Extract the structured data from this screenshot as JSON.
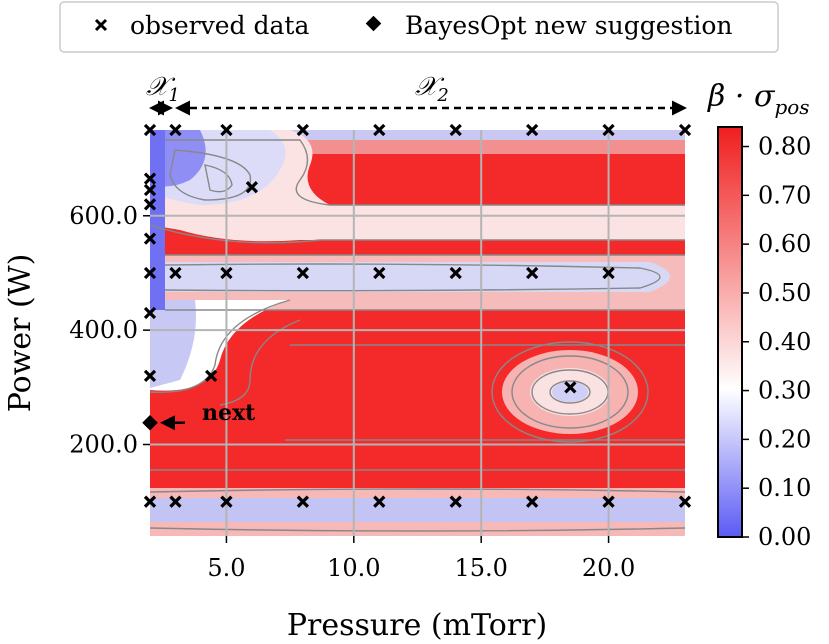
{
  "chart_data": {
    "type": "heatmap",
    "title": "",
    "xlabel": "Pressure (mTorr)",
    "ylabel": "Power (W)",
    "xlim": [
      2.0,
      23.0
    ],
    "ylim": [
      40,
      750
    ],
    "x_ticks": [
      5.0,
      10.0,
      15.0,
      20.0
    ],
    "x_tick_labels": [
      "5.0",
      "10.0",
      "15.0",
      "20.0"
    ],
    "y_ticks": [
      200.0,
      400.0,
      600.0
    ],
    "y_tick_labels": [
      "200.0",
      "400.0",
      "600.0"
    ],
    "grid": true,
    "colorbar": {
      "label": "β · σpos",
      "label_main": "β · σ",
      "label_sub": "pos",
      "min": 0.0,
      "max": 0.84,
      "ticks": [
        0.0,
        0.1,
        0.2,
        0.3,
        0.4,
        0.5,
        0.6,
        0.7,
        0.8
      ],
      "tick_labels": [
        "0.00",
        "0.10",
        "0.20",
        "0.30",
        "0.40",
        "0.50",
        "0.60",
        "0.70",
        "0.80"
      ],
      "colors": [
        "#5a5af5",
        "#ffffff",
        "#f01e1e"
      ]
    },
    "legend": {
      "placement": "top-center",
      "entries": [
        {
          "label": "observed data",
          "marker": "x"
        },
        {
          "label": "BayesOpt new suggestion",
          "marker": "diamond"
        }
      ]
    },
    "regions": [
      {
        "label": "𝒳",
        "sub": "1",
        "x_start": 2.0,
        "x_end": 3.0
      },
      {
        "label": "𝒳",
        "sub": "2",
        "x_start": 3.0,
        "x_end": 23.0
      }
    ],
    "observed": [
      {
        "x": 2.0,
        "y": 750
      },
      {
        "x": 3.0,
        "y": 750
      },
      {
        "x": 5.0,
        "y": 750
      },
      {
        "x": 8.0,
        "y": 750
      },
      {
        "x": 11.0,
        "y": 750
      },
      {
        "x": 14.0,
        "y": 750
      },
      {
        "x": 17.0,
        "y": 750
      },
      {
        "x": 20.0,
        "y": 750
      },
      {
        "x": 23.0,
        "y": 750
      },
      {
        "x": 2.0,
        "y": 665
      },
      {
        "x": 2.0,
        "y": 645
      },
      {
        "x": 2.0,
        "y": 620
      },
      {
        "x": 2.0,
        "y": 560
      },
      {
        "x": 6.0,
        "y": 650
      },
      {
        "x": 2.0,
        "y": 500
      },
      {
        "x": 3.0,
        "y": 500
      },
      {
        "x": 5.0,
        "y": 500
      },
      {
        "x": 8.0,
        "y": 500
      },
      {
        "x": 11.0,
        "y": 500
      },
      {
        "x": 14.0,
        "y": 500
      },
      {
        "x": 17.0,
        "y": 500
      },
      {
        "x": 20.0,
        "y": 500
      },
      {
        "x": 2.0,
        "y": 430
      },
      {
        "x": 2.0,
        "y": 320
      },
      {
        "x": 4.4,
        "y": 320
      },
      {
        "x": 18.5,
        "y": 300
      },
      {
        "x": 2.0,
        "y": 100
      },
      {
        "x": 3.0,
        "y": 100
      },
      {
        "x": 5.0,
        "y": 100
      },
      {
        "x": 8.0,
        "y": 100
      },
      {
        "x": 11.0,
        "y": 100
      },
      {
        "x": 14.0,
        "y": 100
      },
      {
        "x": 17.0,
        "y": 100
      },
      {
        "x": 20.0,
        "y": 100
      },
      {
        "x": 23.0,
        "y": 100
      }
    ],
    "suggestion": {
      "x": 2.0,
      "y": 238,
      "annotation": "next"
    }
  }
}
